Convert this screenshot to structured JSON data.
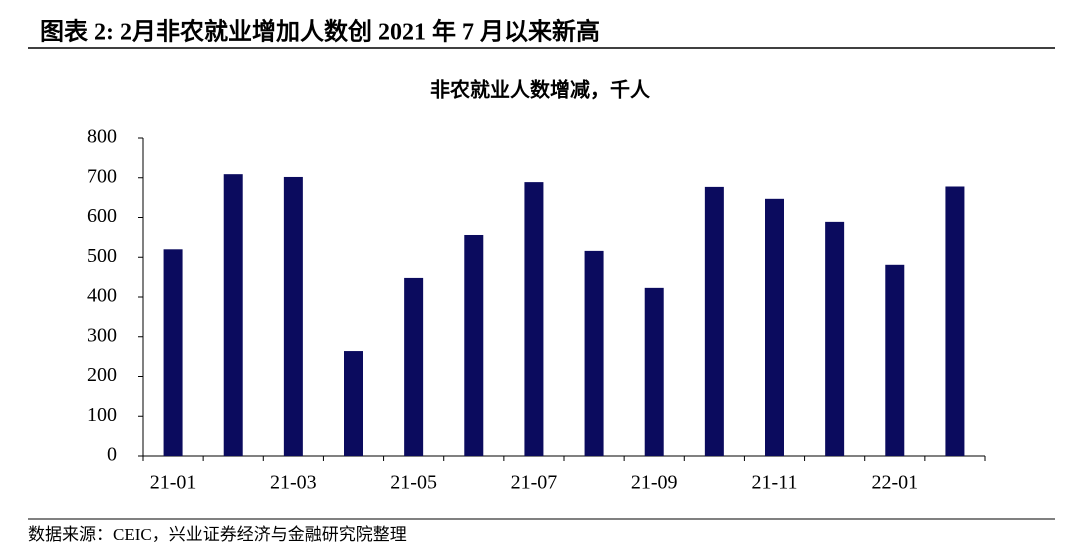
{
  "header": {
    "title": "图表 2: 2月非农就业增加人数创 2021 年 7 月以来新高"
  },
  "source": "数据来源：CEIC，兴业证券经济与金融研究院整理",
  "chart_data": {
    "type": "bar",
    "title": "非农就业人数增减，千人",
    "categories": [
      "21-01",
      null,
      "21-03",
      null,
      "21-05",
      null,
      "21-07",
      null,
      "21-09",
      null,
      "21-11",
      null,
      "22-01",
      null
    ],
    "values": [
      520,
      709,
      702,
      264,
      448,
      556,
      689,
      516,
      423,
      677,
      647,
      589,
      481,
      678
    ],
    "color": "#0b0b5e",
    "ylim": [
      0,
      800
    ],
    "yticks": [
      0,
      100,
      200,
      300,
      400,
      500,
      600,
      700,
      800
    ],
    "grid": false
  }
}
